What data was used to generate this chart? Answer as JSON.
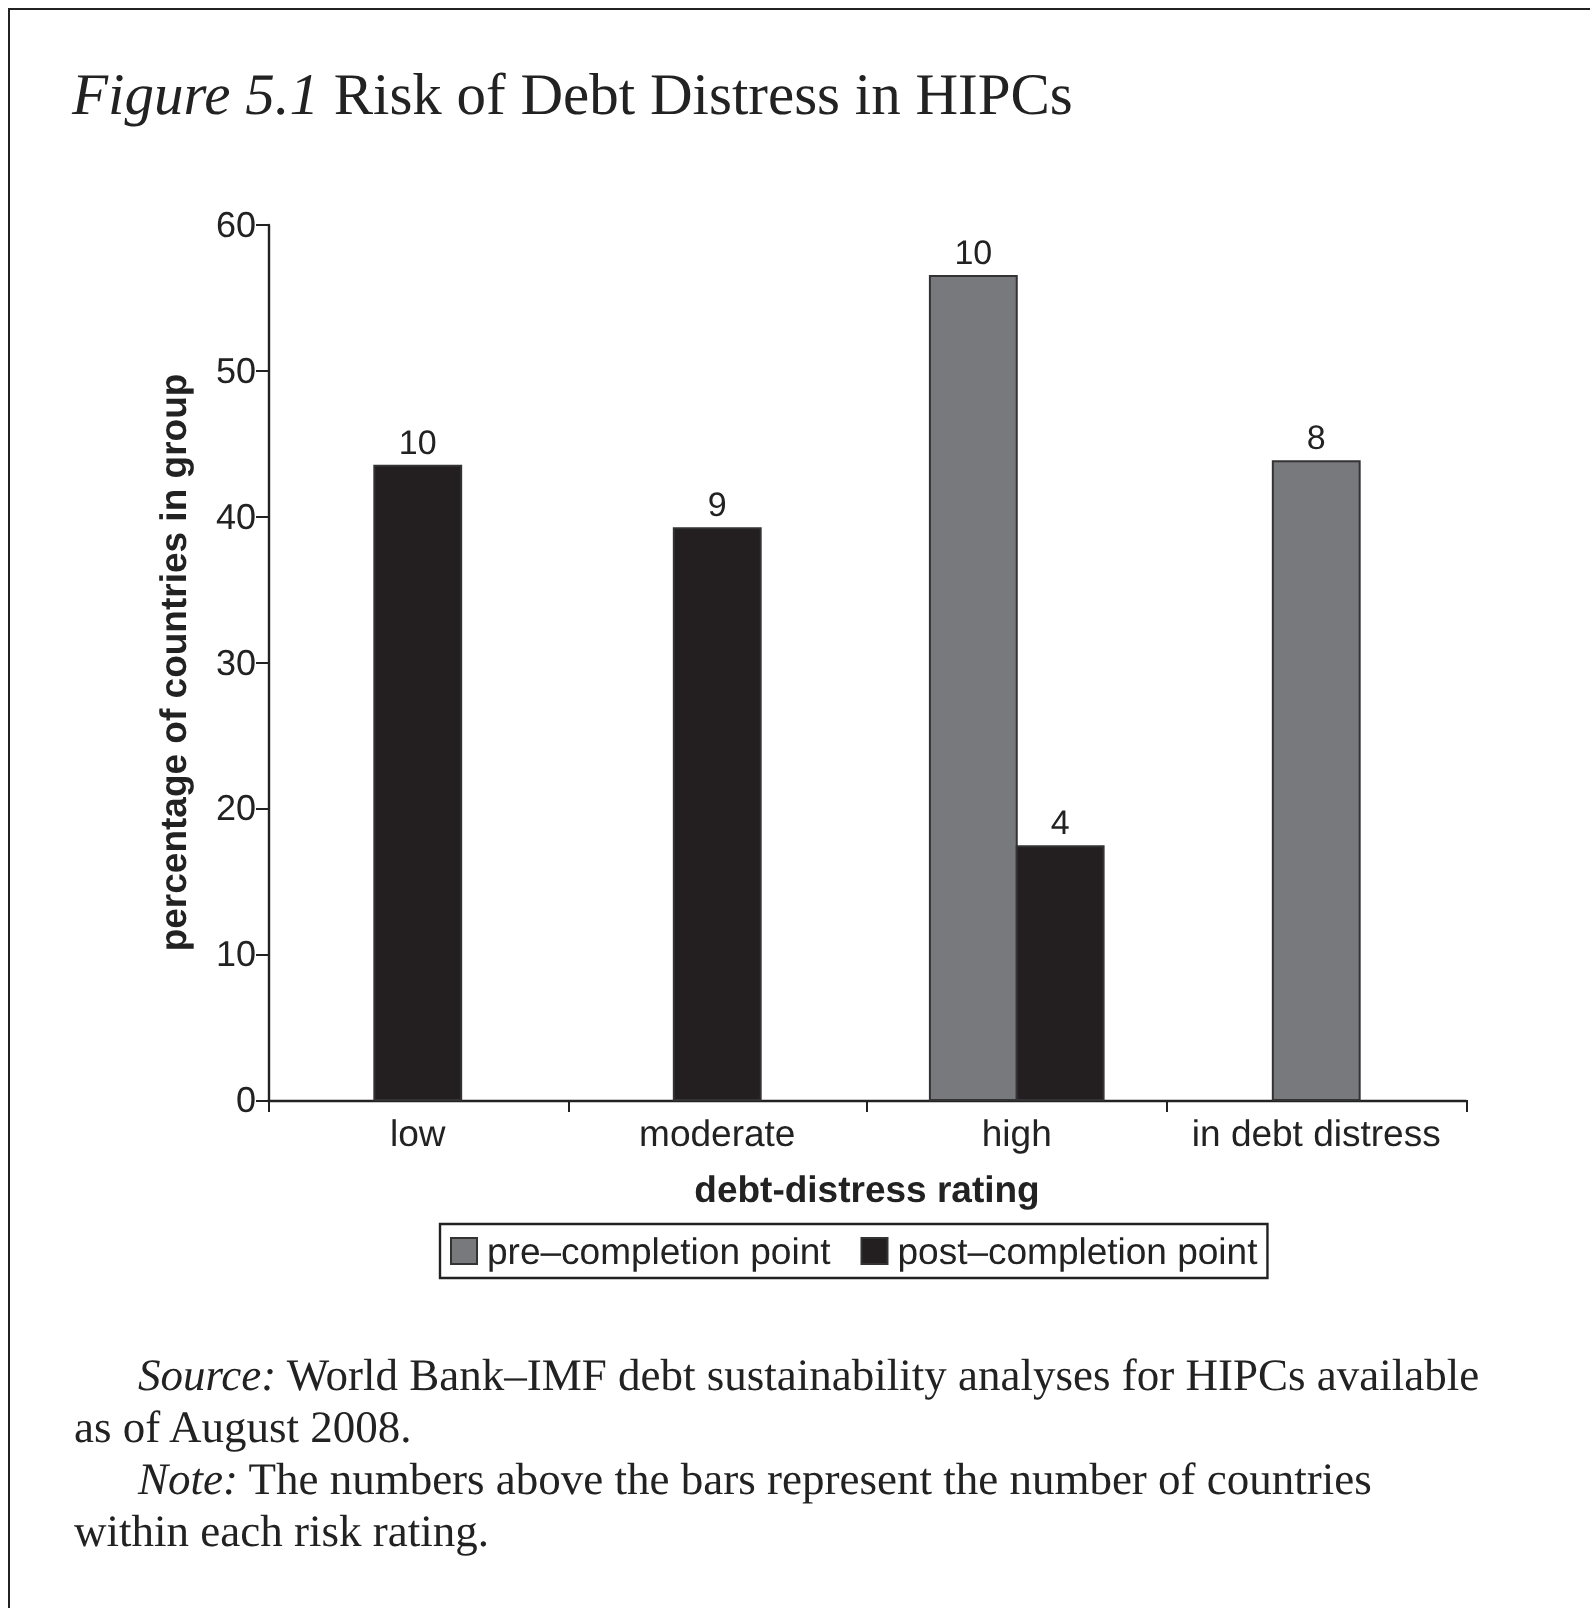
{
  "chart_data": {
    "type": "bar",
    "title": "Figure 5.1 Risk of Debt Distress in HIPCs",
    "xlabel": "debt-distress rating",
    "ylabel": "percentage of countries in group",
    "categories": [
      "low",
      "moderate",
      "high",
      "in debt distress"
    ],
    "series": [
      {
        "name": "pre–completion point",
        "color": "#78797d",
        "values": [
          null,
          null,
          56.5,
          43.8
        ]
      },
      {
        "name": "post–completion point",
        "color": "#231f20",
        "values": [
          43.5,
          39.2,
          17.4,
          null
        ]
      }
    ],
    "ylim": [
      0,
      60
    ],
    "yticks": [
      0,
      10,
      20,
      30,
      40,
      50,
      60
    ],
    "grid": false,
    "legend": "bottom",
    "annotations": [
      {
        "text": "10",
        "x": "low",
        "y": 43.5
      },
      {
        "text": "9",
        "x": "moderate",
        "y": 39.2
      },
      {
        "text": "10",
        "x": "high",
        "y": 56.5
      },
      {
        "text": "4",
        "x": "high",
        "y": 17.4
      },
      {
        "text": "8",
        "x": "in debt distress",
        "y": 43.8
      },
      "Source: World Bank–IMF debt sustainability analyses for HIPCs available as of August 2008.",
      "Note: The numbers above the bars represent the number of countries within each risk rating."
    ]
  }
}
